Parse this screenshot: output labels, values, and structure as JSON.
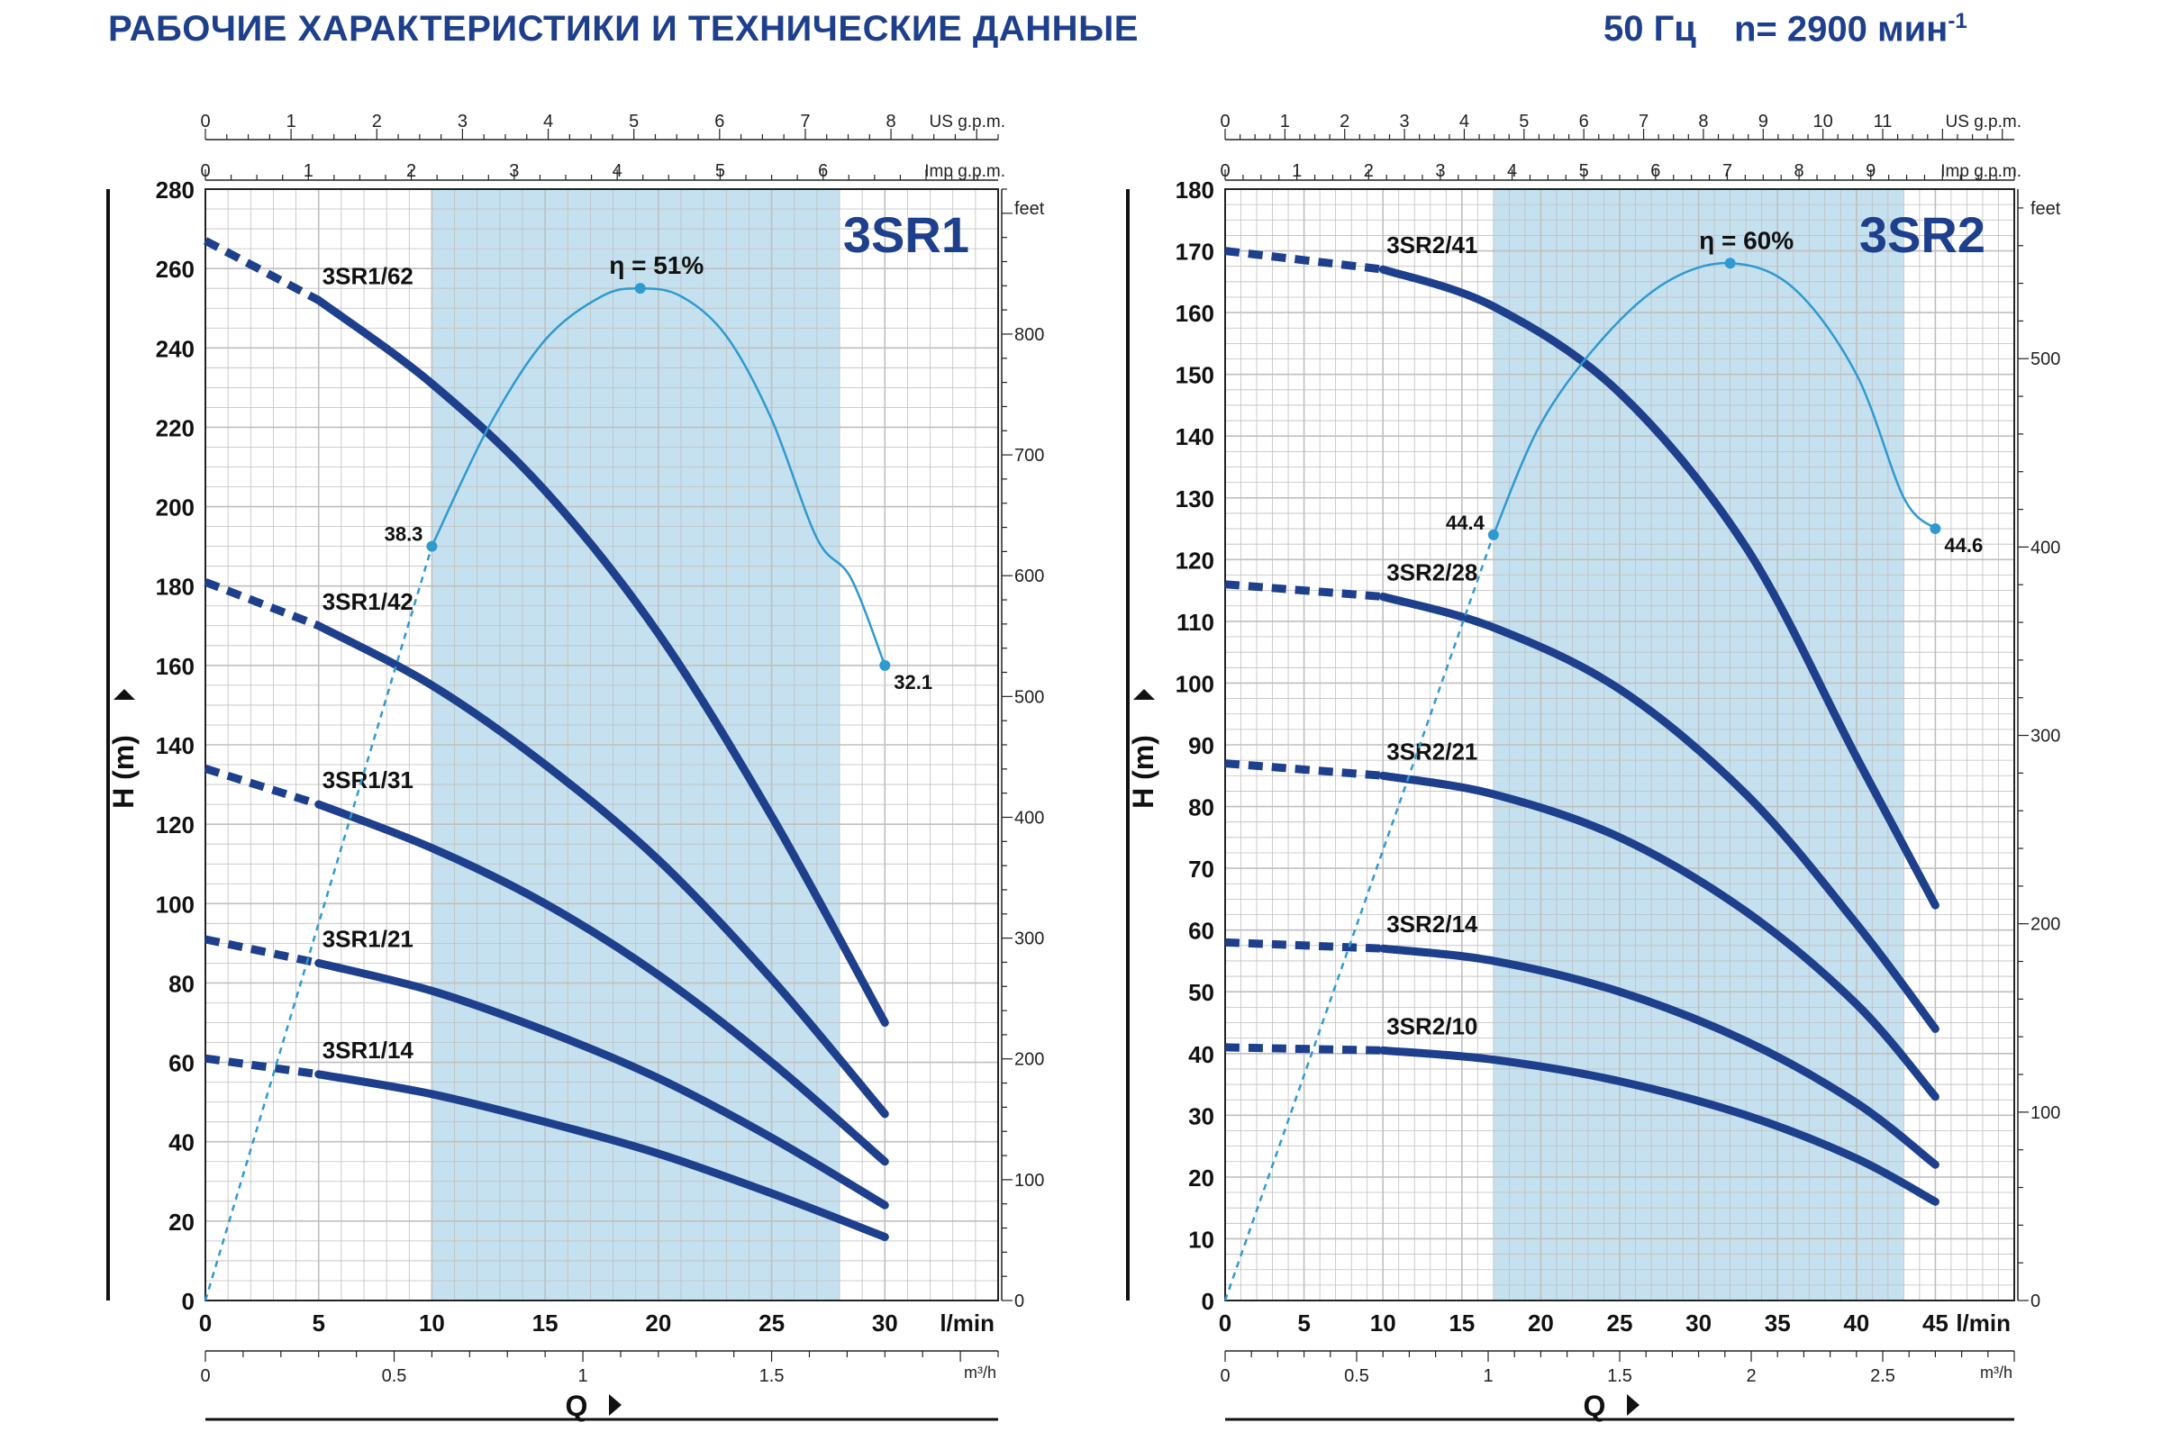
{
  "header": {
    "title": "РАБОЧИЕ ХАРАКТЕРИСТИКИ И ТЕХНИЧЕСКИЕ ДАННЫЕ",
    "frequency": "50 Гц",
    "speed": "n= 2900 мин",
    "speed_exp": "-1"
  },
  "colors": {
    "curve": "#1d3f8c",
    "efficiency": "#2e9ad0",
    "band": "#c5e1ef",
    "grid": "#bfbfbf",
    "text": "#1d3f8c"
  },
  "chart_data": [
    {
      "type": "line",
      "name": "3SR1",
      "xlabel": "Q",
      "ylabel": "H (m)",
      "x_unit": "l/min",
      "xlim": [
        0,
        35
      ],
      "ylim": [
        0,
        280
      ],
      "x_ticks": [
        0,
        5,
        10,
        15,
        20,
        25,
        30
      ],
      "y_ticks": [
        0,
        20,
        40,
        60,
        80,
        100,
        120,
        140,
        160,
        180,
        200,
        220,
        240,
        260,
        280
      ],
      "recommended_range": [
        10,
        28
      ],
      "axis_us_gpm": {
        "unit": "US g.p.m.",
        "ticks": [
          0,
          1,
          2,
          3,
          4,
          5,
          6,
          7,
          8
        ]
      },
      "axis_imp_gpm": {
        "unit": "Imp g.p.m.",
        "ticks": [
          0,
          1,
          2,
          3,
          4,
          5,
          6
        ]
      },
      "axis_m3h": {
        "unit": "m³/h",
        "ticks": [
          "0",
          "0.5",
          "1",
          "1.5"
        ],
        "values": [
          0,
          0.5,
          1,
          1.5
        ]
      },
      "axis_feet": {
        "unit": "feet",
        "ticks": [
          0,
          100,
          200,
          300,
          400,
          500,
          600,
          700,
          800
        ]
      },
      "series": [
        {
          "name": "3SR1/62",
          "x": [
            0,
            5,
            10,
            15,
            20,
            25,
            30
          ],
          "y": [
            267,
            252,
            231,
            204,
            168,
            122,
            70
          ]
        },
        {
          "name": "3SR1/42",
          "x": [
            0,
            5,
            10,
            15,
            20,
            25,
            30
          ],
          "y": [
            181,
            170,
            155,
            135,
            111,
            81,
            47
          ]
        },
        {
          "name": "3SR1/31",
          "x": [
            0,
            5,
            10,
            15,
            20,
            25,
            30
          ],
          "y": [
            134,
            125,
            114,
            100,
            82,
            60,
            35
          ]
        },
        {
          "name": "3SR1/21",
          "x": [
            0,
            5,
            10,
            15,
            20,
            25,
            30
          ],
          "y": [
            91,
            85,
            78,
            68,
            56,
            41,
            24
          ]
        },
        {
          "name": "3SR1/14",
          "x": [
            0,
            5,
            10,
            15,
            20,
            25,
            30
          ],
          "y": [
            61,
            57,
            52,
            45,
            37,
            27,
            16
          ]
        }
      ],
      "efficiency": {
        "label": "η = 51%",
        "x": [
          0,
          5,
          10,
          12.5,
          15,
          17.5,
          19.2,
          21,
          23,
          25,
          27,
          28.5,
          30
        ],
        "y": [
          0,
          95,
          190,
          220,
          242,
          253,
          255,
          253,
          243,
          222,
          192,
          182,
          160
        ],
        "dashed_until": 10,
        "markers": [
          {
            "x": 10,
            "y": 190,
            "label": "38.3"
          },
          {
            "x": 19.2,
            "y": 255,
            "label": ""
          },
          {
            "x": 30,
            "y": 160,
            "label": "32.1"
          }
        ]
      }
    },
    {
      "type": "line",
      "name": "3SR2",
      "xlabel": "Q",
      "ylabel": "H (m)",
      "x_unit": "l/min",
      "xlim": [
        0,
        50
      ],
      "ylim": [
        0,
        180
      ],
      "x_ticks": [
        0,
        5,
        10,
        15,
        20,
        25,
        30,
        35,
        40,
        45
      ],
      "y_ticks": [
        0,
        10,
        20,
        30,
        40,
        50,
        60,
        70,
        80,
        90,
        100,
        110,
        120,
        130,
        140,
        150,
        160,
        170,
        180
      ],
      "recommended_range": [
        17,
        43
      ],
      "axis_us_gpm": {
        "unit": "US g.p.m.",
        "ticks": [
          0,
          1,
          2,
          3,
          4,
          5,
          6,
          7,
          8,
          9,
          10,
          11
        ]
      },
      "axis_imp_gpm": {
        "unit": "Imp g.p.m.",
        "ticks": [
          0,
          1,
          2,
          3,
          4,
          5,
          6,
          7,
          8,
          9
        ]
      },
      "axis_m3h": {
        "unit": "m³/h",
        "ticks": [
          "0",
          "0.5",
          "1",
          "1.5",
          "2",
          "2.5"
        ],
        "values": [
          0,
          0.5,
          1,
          1.5,
          2,
          2.5
        ]
      },
      "axis_feet": {
        "unit": "feet",
        "ticks": [
          0,
          100,
          200,
          300,
          400,
          500
        ]
      },
      "series": [
        {
          "name": "3SR2/41",
          "x": [
            0,
            10,
            17,
            25,
            33,
            40,
            45
          ],
          "y": [
            170,
            167,
            161,
            147,
            122,
            88,
            64
          ]
        },
        {
          "name": "3SR2/28",
          "x": [
            0,
            10,
            17,
            25,
            33,
            40,
            45
          ],
          "y": [
            116,
            114,
            109,
            99,
            82,
            61,
            44
          ]
        },
        {
          "name": "3SR2/21",
          "x": [
            0,
            10,
            17,
            25,
            33,
            40,
            45
          ],
          "y": [
            87,
            85,
            82,
            75,
            63,
            48,
            33
          ]
        },
        {
          "name": "3SR2/14",
          "x": [
            0,
            10,
            17,
            25,
            33,
            40,
            45
          ],
          "y": [
            58,
            57,
            55,
            50,
            42,
            32,
            22
          ]
        },
        {
          "name": "3SR2/10",
          "x": [
            0,
            10,
            17,
            25,
            33,
            40,
            45
          ],
          "y": [
            41,
            40.5,
            39,
            35.5,
            30,
            23,
            16
          ]
        }
      ],
      "efficiency": {
        "label": "η = 60%",
        "x": [
          0,
          8.5,
          17,
          20,
          24,
          28,
          32,
          36,
          40,
          43,
          45
        ],
        "y": [
          0,
          62,
          124,
          142,
          156,
          165,
          168,
          164,
          150,
          130,
          125
        ],
        "dashed_until": 17,
        "markers": [
          {
            "x": 17,
            "y": 124,
            "label": "44.4"
          },
          {
            "x": 32,
            "y": 168,
            "label": ""
          },
          {
            "x": 45,
            "y": 125,
            "label": "44.6"
          }
        ]
      }
    }
  ]
}
